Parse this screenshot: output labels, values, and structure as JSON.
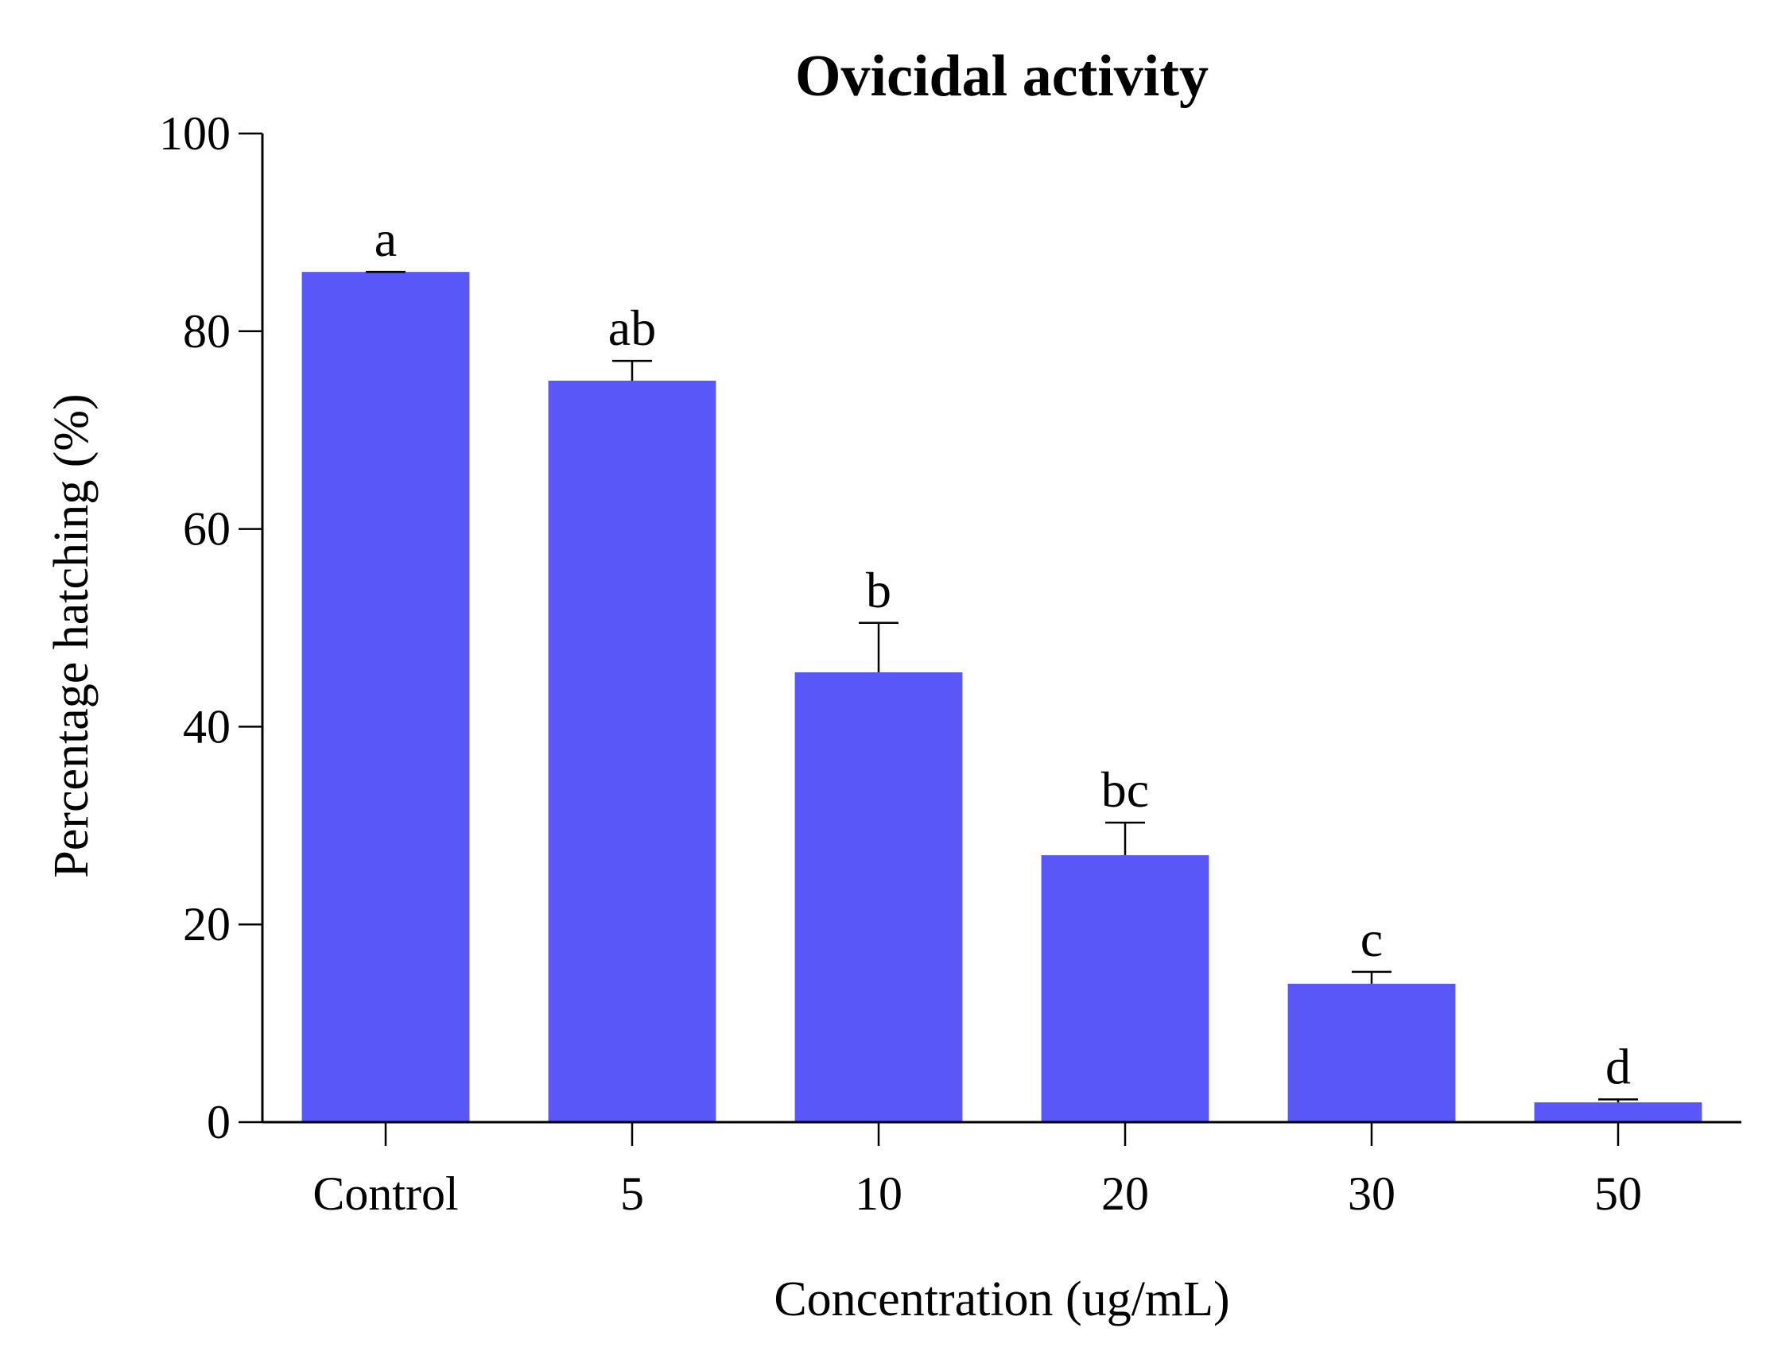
{
  "chart_data": {
    "type": "bar",
    "title": "Ovicidal activity",
    "xlabel": "Concentration (ug/mL)",
    "ylabel": "Percentage hatching (%)",
    "categories": [
      "Control",
      "5",
      "10",
      "20",
      "30",
      "50"
    ],
    "values": [
      86,
      75,
      45.5,
      27,
      14,
      2
    ],
    "errors": [
      0,
      2,
      5,
      3.3,
      1.2,
      0.3
    ],
    "significance_labels": [
      "a",
      "ab",
      "b",
      "bc",
      "c",
      "d"
    ],
    "ylim": [
      0,
      100
    ],
    "yticks": [
      0,
      20,
      40,
      60,
      80,
      100
    ],
    "grid": false,
    "legend": "none",
    "bar_color": "#5a57f9"
  }
}
